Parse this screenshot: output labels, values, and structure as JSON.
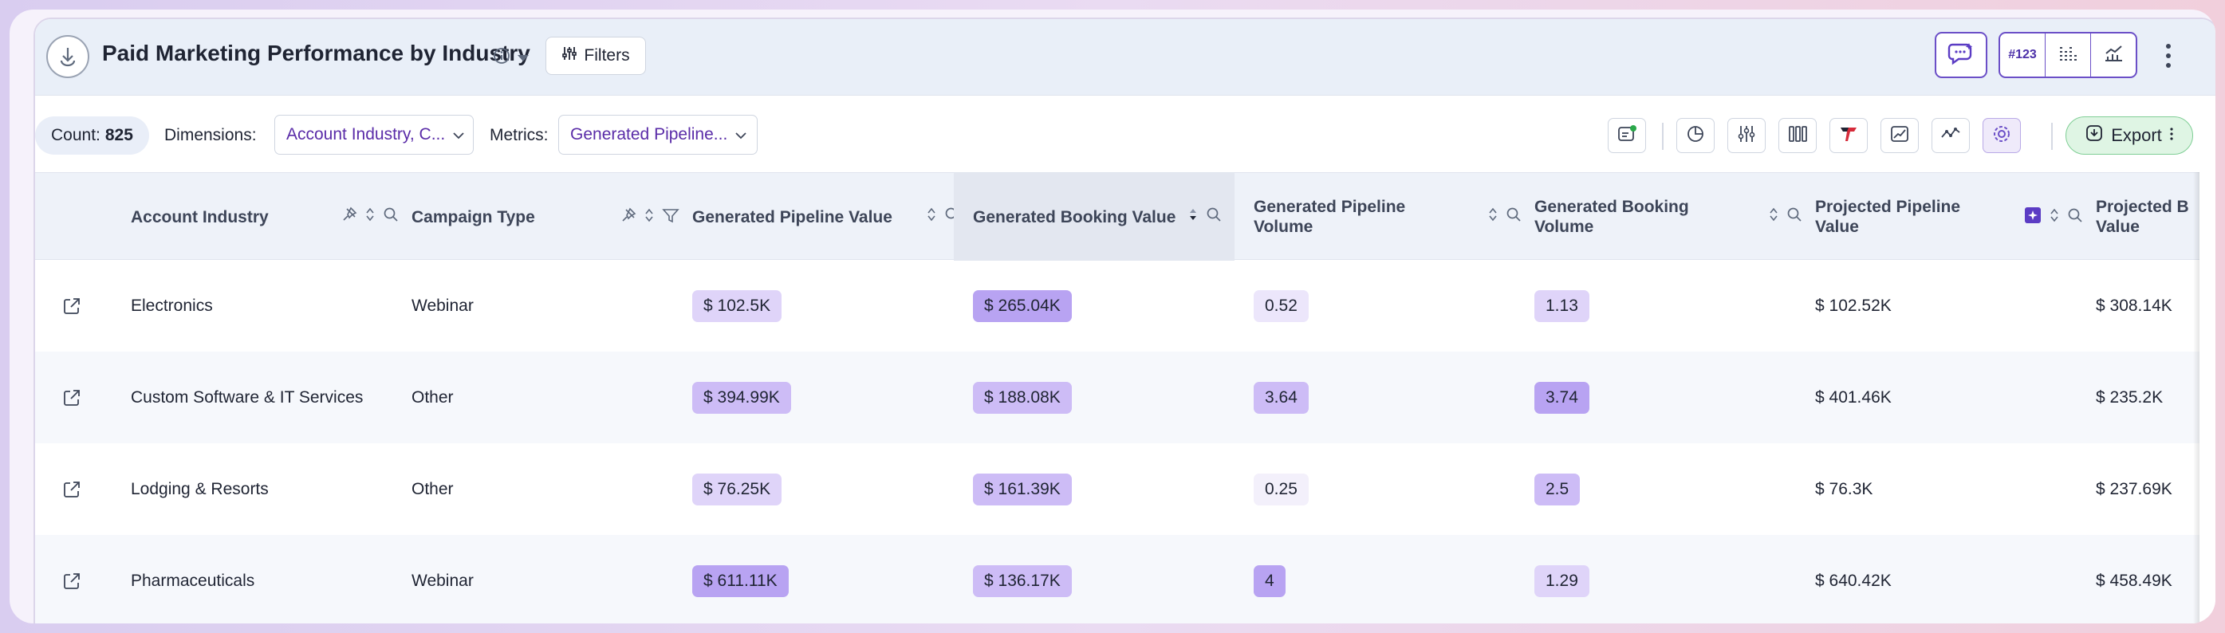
{
  "header": {
    "title": "Paid Marketing Performance by Industry",
    "filters_label": "Filters",
    "viz_number_label": "#123"
  },
  "toolbar": {
    "count_label": "Count:",
    "count_value": "825",
    "dimensions_label": "Dimensions:",
    "dimensions_value": "Account Industry, C...",
    "metrics_label": "Metrics:",
    "metrics_value": "Generated Pipeline...",
    "export_label": "Export"
  },
  "table": {
    "columns": [
      "Account Industry",
      "Campaign Type",
      "Generated Pipeline Value",
      "Generated Booking Value",
      "Generated Pipeline Volume",
      "Generated Booking Volume",
      "Projected Pipeline Value",
      "Projected B Value"
    ],
    "column_lines": {
      "c4": [
        "Generated Pipeline",
        "Volume"
      ],
      "c5": [
        "Generated Booking",
        "Volume"
      ],
      "c6": [
        "Projected Pipeline",
        "Value"
      ],
      "c7": [
        "Projected B",
        "Value"
      ]
    },
    "rows": [
      {
        "industry": "Electronics",
        "campaign": "Webinar",
        "gpv": "$ 102.5K",
        "gbv": "$ 265.04K",
        "gpvol": "0.52",
        "gbvol": "1.13",
        "ppv": "$ 102.52K",
        "pbv": "$ 308.14K"
      },
      {
        "industry": "Custom Software & IT Services",
        "campaign": "Other",
        "gpv": "$ 394.99K",
        "gbv": "$ 188.08K",
        "gpvol": "3.64",
        "gbvol": "3.74",
        "ppv": "$ 401.46K",
        "pbv": "$ 235.2K"
      },
      {
        "industry": "Lodging & Resorts",
        "campaign": "Other",
        "gpv": "$ 76.25K",
        "gbv": "$ 161.39K",
        "gpvol": "0.25",
        "gbvol": "2.5",
        "ppv": "$ 76.3K",
        "pbv": "$ 237.69K"
      },
      {
        "industry": "Pharmaceuticals",
        "campaign": "Webinar",
        "gpv": "$ 611.11K",
        "gbv": "$ 136.17K",
        "gpvol": "4",
        "gbvol": "1.29",
        "ppv": "$ 640.42K",
        "pbv": "$ 458.49K"
      }
    ]
  },
  "colors": {
    "accent": "#6b4fc7",
    "heat_low": "#ece6fb",
    "heat_high": "#b8a3f2",
    "export_bg": "#dff5e4"
  },
  "icons": [
    "logo-icon",
    "info-icon",
    "chevron-down-icon",
    "sliders-icon",
    "ai-chat-icon",
    "number-icon",
    "bar-chart-icon",
    "line-chart-icon",
    "kebab-icon",
    "add-chart-icon",
    "pie-icon",
    "settings-sliders-icon",
    "columns-icon",
    "brand-t-icon",
    "trend-icon",
    "sparkline-icon",
    "gear-icon",
    "download-icon",
    "pin-icon",
    "sort-icon",
    "search-icon",
    "filter-icon",
    "external-link-icon",
    "plus-square-icon"
  ]
}
